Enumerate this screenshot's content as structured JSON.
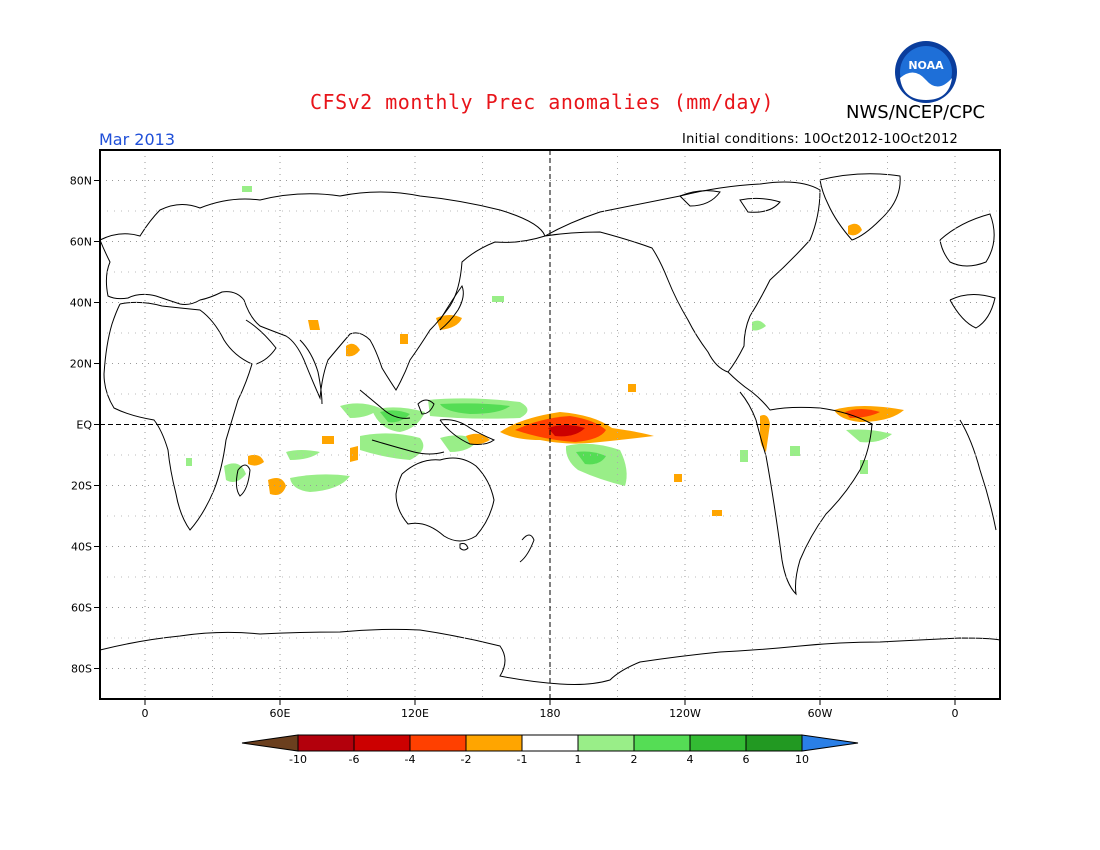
{
  "header": {
    "title": "CFSv2 monthly Prec anomalies (mm/day)",
    "agency": "NWS/NCEP/CPC",
    "valid_month": "Mar 2013",
    "initial_conditions": "Initial conditions: 10Oct2012-10Oct2012",
    "logo_text": "NOAA"
  },
  "map": {
    "lat_labels": [
      "80N",
      "60N",
      "40N",
      "20N",
      "EQ",
      "20S",
      "40S",
      "60S",
      "80S"
    ],
    "lat_values": [
      80,
      60,
      40,
      20,
      0,
      -20,
      -40,
      -60,
      -80
    ],
    "lon_labels": [
      "0",
      "60E",
      "120E",
      "180",
      "120W",
      "60W",
      "0"
    ],
    "lon_values": [
      0,
      60,
      120,
      180,
      240,
      300,
      360
    ]
  },
  "legend": {
    "ticks": [
      "-10",
      "-6",
      "-4",
      "-2",
      "-1",
      "1",
      "2",
      "4",
      "6",
      "10"
    ],
    "colors": [
      "#6b3f1e",
      "#b3000c",
      "#cc0000",
      "#ff4000",
      "#ffa500",
      "#ffffff",
      "#99ee88",
      "#55dd55",
      "#33bb33",
      "#229922",
      "#2a7fe6"
    ]
  }
}
